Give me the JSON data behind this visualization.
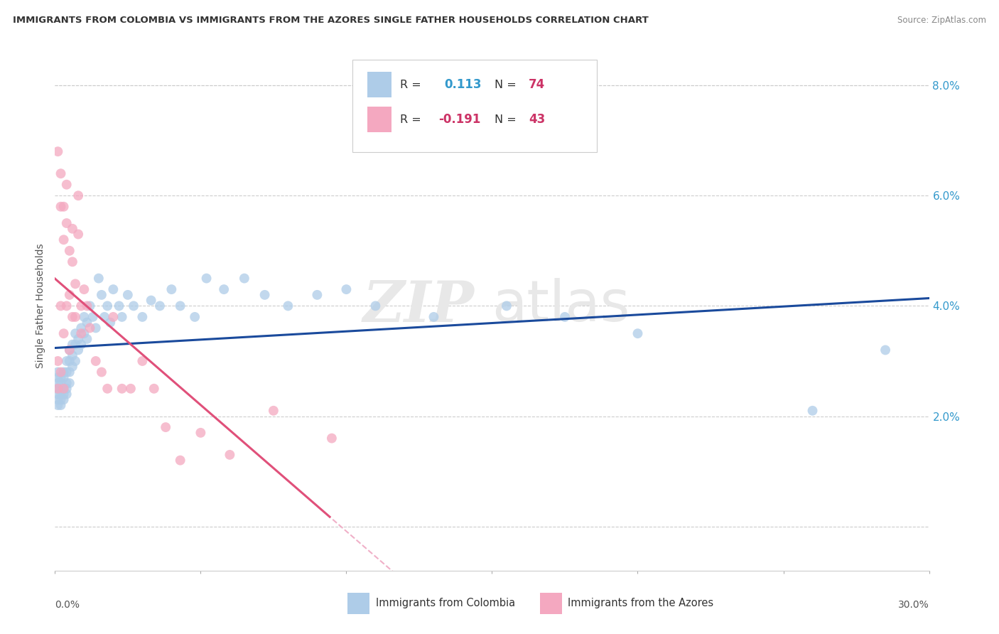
{
  "title": "IMMIGRANTS FROM COLOMBIA VS IMMIGRANTS FROM THE AZORES SINGLE FATHER HOUSEHOLDS CORRELATION CHART",
  "source": "Source: ZipAtlas.com",
  "ylabel": "Single Father Households",
  "y_ticks": [
    0.0,
    0.02,
    0.04,
    0.06,
    0.08
  ],
  "y_tick_labels": [
    "",
    "2.0%",
    "4.0%",
    "6.0%",
    "8.0%"
  ],
  "x_lim": [
    0.0,
    0.3
  ],
  "y_lim": [
    -0.008,
    0.088
  ],
  "colombia_R": 0.113,
  "colombia_N": 74,
  "azores_R": -0.191,
  "azores_N": 43,
  "colombia_color": "#aecce8",
  "colombia_line_color": "#1a4a9c",
  "azores_color": "#f4a8c0",
  "azores_line_color": "#e0507a",
  "azores_dashed_color": "#f0b0c8",
  "watermark_zip": "ZIP",
  "watermark_atlas": "atlas",
  "colombia_x": [
    0.001,
    0.001,
    0.001,
    0.001,
    0.001,
    0.001,
    0.001,
    0.002,
    0.002,
    0.002,
    0.002,
    0.002,
    0.002,
    0.003,
    0.003,
    0.003,
    0.003,
    0.003,
    0.004,
    0.004,
    0.004,
    0.004,
    0.004,
    0.005,
    0.005,
    0.005,
    0.005,
    0.006,
    0.006,
    0.006,
    0.007,
    0.007,
    0.007,
    0.008,
    0.008,
    0.009,
    0.009,
    0.01,
    0.01,
    0.011,
    0.011,
    0.012,
    0.013,
    0.014,
    0.015,
    0.016,
    0.017,
    0.018,
    0.019,
    0.02,
    0.022,
    0.023,
    0.025,
    0.027,
    0.03,
    0.033,
    0.036,
    0.04,
    0.043,
    0.048,
    0.052,
    0.058,
    0.065,
    0.072,
    0.08,
    0.09,
    0.1,
    0.11,
    0.13,
    0.155,
    0.175,
    0.2,
    0.26,
    0.285
  ],
  "colombia_y": [
    0.025,
    0.026,
    0.027,
    0.024,
    0.023,
    0.028,
    0.022,
    0.026,
    0.025,
    0.027,
    0.024,
    0.023,
    0.022,
    0.028,
    0.027,
    0.025,
    0.024,
    0.023,
    0.03,
    0.028,
    0.026,
    0.025,
    0.024,
    0.032,
    0.03,
    0.028,
    0.026,
    0.033,
    0.031,
    0.029,
    0.035,
    0.033,
    0.03,
    0.034,
    0.032,
    0.036,
    0.033,
    0.038,
    0.035,
    0.037,
    0.034,
    0.04,
    0.038,
    0.036,
    0.045,
    0.042,
    0.038,
    0.04,
    0.037,
    0.043,
    0.04,
    0.038,
    0.042,
    0.04,
    0.038,
    0.041,
    0.04,
    0.043,
    0.04,
    0.038,
    0.045,
    0.043,
    0.045,
    0.042,
    0.04,
    0.042,
    0.043,
    0.04,
    0.038,
    0.04,
    0.038,
    0.035,
    0.021,
    0.032
  ],
  "azores_x": [
    0.001,
    0.001,
    0.001,
    0.002,
    0.002,
    0.002,
    0.002,
    0.003,
    0.003,
    0.003,
    0.003,
    0.004,
    0.004,
    0.004,
    0.005,
    0.005,
    0.005,
    0.006,
    0.006,
    0.006,
    0.007,
    0.007,
    0.008,
    0.008,
    0.009,
    0.009,
    0.01,
    0.011,
    0.012,
    0.014,
    0.016,
    0.018,
    0.02,
    0.023,
    0.026,
    0.03,
    0.034,
    0.038,
    0.043,
    0.05,
    0.06,
    0.075,
    0.095
  ],
  "azores_y": [
    0.03,
    0.025,
    0.068,
    0.064,
    0.058,
    0.04,
    0.028,
    0.058,
    0.052,
    0.035,
    0.025,
    0.062,
    0.055,
    0.04,
    0.05,
    0.042,
    0.032,
    0.054,
    0.048,
    0.038,
    0.044,
    0.038,
    0.06,
    0.053,
    0.04,
    0.035,
    0.043,
    0.04,
    0.036,
    0.03,
    0.028,
    0.025,
    0.038,
    0.025,
    0.025,
    0.03,
    0.025,
    0.018,
    0.012,
    0.017,
    0.013,
    0.021,
    0.016
  ]
}
